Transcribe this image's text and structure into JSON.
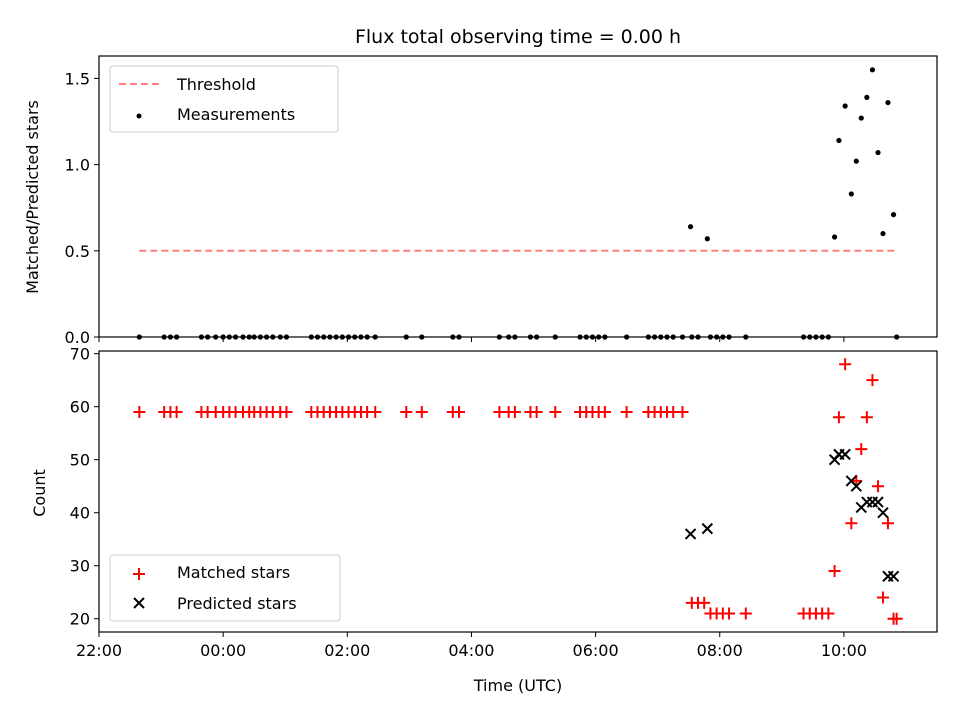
{
  "figure": {
    "title": "Flux total observing time = 0.00 h"
  },
  "chart_data": [
    {
      "type": "scatter",
      "ylabel": "Matched/Predicted stars",
      "xlim": [
        -2.0,
        11.5
      ],
      "ylim": [
        0.0,
        1.63
      ],
      "yticks": [
        0.0,
        0.5,
        1.0,
        1.5
      ],
      "ytick_labels": [
        "0.0",
        "0.5",
        "1.0",
        "1.5"
      ],
      "legend_position": "upper-left",
      "threshold": {
        "name": "Threshold",
        "value": 0.5,
        "x_range": [
          -1.35,
          10.85
        ],
        "color": "#ff7f7f",
        "style": "dashed"
      },
      "series": [
        {
          "name": "Measurements",
          "marker": "dot",
          "color": "#000000",
          "points": [
            [
              7.53,
              0.64
            ],
            [
              7.8,
              0.57
            ],
            [
              9.85,
              0.58
            ],
            [
              9.92,
              1.14
            ],
            [
              10.02,
              1.34
            ],
            [
              10.12,
              0.83
            ],
            [
              10.2,
              1.02
            ],
            [
              10.28,
              1.27
            ],
            [
              10.37,
              1.39
            ],
            [
              10.46,
              1.55
            ],
            [
              10.55,
              1.07
            ],
            [
              10.63,
              0.6
            ],
            [
              10.71,
              1.36
            ],
            [
              10.8,
              0.71
            ],
            [
              -1.35,
              0
            ],
            [
              -0.95,
              0
            ],
            [
              -0.85,
              0
            ],
            [
              -0.75,
              0
            ],
            [
              -0.35,
              0
            ],
            [
              -0.25,
              0
            ],
            [
              -0.12,
              0
            ],
            [
              0.0,
              0
            ],
            [
              0.1,
              0
            ],
            [
              0.2,
              0
            ],
            [
              0.32,
              0
            ],
            [
              0.42,
              0
            ],
            [
              0.5,
              0
            ],
            [
              0.6,
              0
            ],
            [
              0.7,
              0
            ],
            [
              0.8,
              0
            ],
            [
              0.92,
              0
            ],
            [
              1.02,
              0
            ],
            [
              1.42,
              0
            ],
            [
              1.52,
              0
            ],
            [
              1.62,
              0
            ],
            [
              1.72,
              0
            ],
            [
              1.82,
              0
            ],
            [
              1.92,
              0
            ],
            [
              2.02,
              0
            ],
            [
              2.12,
              0
            ],
            [
              2.22,
              0
            ],
            [
              2.32,
              0
            ],
            [
              2.45,
              0
            ],
            [
              2.95,
              0
            ],
            [
              3.2,
              0
            ],
            [
              3.7,
              0
            ],
            [
              3.8,
              0
            ],
            [
              4.45,
              0
            ],
            [
              4.6,
              0
            ],
            [
              4.7,
              0
            ],
            [
              4.95,
              0
            ],
            [
              5.05,
              0
            ],
            [
              5.35,
              0
            ],
            [
              5.75,
              0
            ],
            [
              5.85,
              0
            ],
            [
              5.95,
              0
            ],
            [
              6.05,
              0
            ],
            [
              6.15,
              0
            ],
            [
              6.5,
              0
            ],
            [
              6.85,
              0
            ],
            [
              6.95,
              0
            ],
            [
              7.05,
              0
            ],
            [
              7.15,
              0
            ],
            [
              7.25,
              0
            ],
            [
              7.4,
              0
            ],
            [
              7.55,
              0
            ],
            [
              7.65,
              0
            ],
            [
              7.85,
              0
            ],
            [
              7.95,
              0
            ],
            [
              8.05,
              0
            ],
            [
              8.15,
              0
            ],
            [
              8.42,
              0
            ],
            [
              9.35,
              0
            ],
            [
              9.45,
              0
            ],
            [
              9.55,
              0
            ],
            [
              9.65,
              0
            ],
            [
              9.75,
              0
            ],
            [
              10.85,
              0
            ]
          ]
        }
      ]
    },
    {
      "type": "scatter",
      "xlabel": "Time (UTC)",
      "ylabel": "Count",
      "xlim": [
        -2.0,
        11.5
      ],
      "ylim": [
        17.5,
        70.5
      ],
      "xticks": [
        -2,
        0,
        2,
        4,
        6,
        8,
        10
      ],
      "xtick_labels": [
        "22:00",
        "00:00",
        "02:00",
        "04:00",
        "06:00",
        "08:00",
        "10:00"
      ],
      "yticks": [
        20,
        30,
        40,
        50,
        60,
        70
      ],
      "ytick_labels": [
        "20",
        "30",
        "40",
        "50",
        "60",
        "70"
      ],
      "legend_position": "lower-left",
      "series": [
        {
          "name": "Matched stars",
          "marker": "plus",
          "color": "#ff0000",
          "points": [
            [
              -1.35,
              59
            ],
            [
              -0.95,
              59
            ],
            [
              -0.85,
              59
            ],
            [
              -0.75,
              59
            ],
            [
              -0.35,
              59
            ],
            [
              -0.25,
              59
            ],
            [
              -0.12,
              59
            ],
            [
              0.0,
              59
            ],
            [
              0.1,
              59
            ],
            [
              0.2,
              59
            ],
            [
              0.32,
              59
            ],
            [
              0.42,
              59
            ],
            [
              0.5,
              59
            ],
            [
              0.6,
              59
            ],
            [
              0.7,
              59
            ],
            [
              0.8,
              59
            ],
            [
              0.92,
              59
            ],
            [
              1.02,
              59
            ],
            [
              1.42,
              59
            ],
            [
              1.52,
              59
            ],
            [
              1.62,
              59
            ],
            [
              1.72,
              59
            ],
            [
              1.82,
              59
            ],
            [
              1.92,
              59
            ],
            [
              2.02,
              59
            ],
            [
              2.12,
              59
            ],
            [
              2.22,
              59
            ],
            [
              2.32,
              59
            ],
            [
              2.45,
              59
            ],
            [
              2.95,
              59
            ],
            [
              3.2,
              59
            ],
            [
              3.7,
              59
            ],
            [
              3.8,
              59
            ],
            [
              4.45,
              59
            ],
            [
              4.6,
              59
            ],
            [
              4.7,
              59
            ],
            [
              4.95,
              59
            ],
            [
              5.05,
              59
            ],
            [
              5.35,
              59
            ],
            [
              5.75,
              59
            ],
            [
              5.85,
              59
            ],
            [
              5.95,
              59
            ],
            [
              6.05,
              59
            ],
            [
              6.15,
              59
            ],
            [
              6.5,
              59
            ],
            [
              6.85,
              59
            ],
            [
              6.95,
              59
            ],
            [
              7.05,
              59
            ],
            [
              7.15,
              59
            ],
            [
              7.25,
              59
            ],
            [
              7.4,
              59
            ],
            [
              7.55,
              23
            ],
            [
              7.65,
              23
            ],
            [
              7.75,
              23
            ],
            [
              7.85,
              21
            ],
            [
              7.95,
              21
            ],
            [
              8.05,
              21
            ],
            [
              8.15,
              21
            ],
            [
              8.42,
              21
            ],
            [
              9.35,
              21
            ],
            [
              9.45,
              21
            ],
            [
              9.55,
              21
            ],
            [
              9.65,
              21
            ],
            [
              9.75,
              21
            ],
            [
              9.85,
              29
            ],
            [
              9.92,
              58
            ],
            [
              10.02,
              68
            ],
            [
              10.12,
              38
            ],
            [
              10.2,
              46
            ],
            [
              10.28,
              52
            ],
            [
              10.37,
              58
            ],
            [
              10.46,
              65
            ],
            [
              10.55,
              45
            ],
            [
              10.63,
              24
            ],
            [
              10.71,
              38
            ],
            [
              10.8,
              20
            ],
            [
              10.85,
              20
            ]
          ]
        },
        {
          "name": "Predicted stars",
          "marker": "x",
          "color": "#000000",
          "points": [
            [
              7.53,
              36
            ],
            [
              7.8,
              37
            ],
            [
              9.85,
              50
            ],
            [
              9.92,
              51
            ],
            [
              10.02,
              51
            ],
            [
              10.12,
              46
            ],
            [
              10.2,
              45
            ],
            [
              10.28,
              41
            ],
            [
              10.37,
              42
            ],
            [
              10.46,
              42
            ],
            [
              10.55,
              42
            ],
            [
              10.63,
              40
            ],
            [
              10.71,
              28
            ],
            [
              10.8,
              28
            ]
          ]
        }
      ]
    }
  ]
}
